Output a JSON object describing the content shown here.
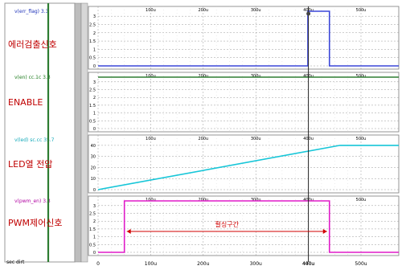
{
  "colors": {
    "green": "#2e7d32",
    "blue": "#3b46d8",
    "cyan": "#17c6d8",
    "magenta": "#e01bc8",
    "red": "#d00000",
    "panel_bg": "#ffffff"
  },
  "time_axis": {
    "unit": "us",
    "labels": [
      "0",
      "100u",
      "200u",
      "300u",
      "400u",
      "500u"
    ]
  },
  "panels": [
    {
      "id": "p1",
      "signal_title": "v(err_flag) 3.3",
      "label": "에러검출신호",
      "y_ticks": [
        "3",
        "2.5",
        "2",
        "1.5",
        "1",
        "0.5",
        "0"
      ]
    },
    {
      "id": "p2",
      "signal_title": "v(en) cc.1c 3.3",
      "label": "ENABLE",
      "y_ticks": [
        "3",
        "2.5",
        "2",
        "1.5",
        "1",
        "0.5",
        "0"
      ]
    },
    {
      "id": "p3",
      "signal_title": "v(led) sc.cc 35.7",
      "label": "LED열 전압",
      "y_ticks": [
        "40",
        "30",
        "20",
        "10",
        "0"
      ]
    },
    {
      "id": "p4",
      "signal_title": "v(pwm_en) 3.3",
      "label": "PWM제어신호",
      "y_ticks": [
        "3",
        "2.5",
        "2",
        "1.5",
        "1",
        "0.5",
        "0"
      ]
    }
  ],
  "annotation": {
    "text": "펄싱구간"
  },
  "bottom_left": "sec dirt",
  "cursor": {
    "label": "440u"
  },
  "chart_data": {
    "type": "line",
    "x_unit": "us",
    "xlim": [
      0,
      500
    ],
    "series": [
      {
        "panel": "p1",
        "points": [
          [
            0,
            0
          ],
          [
            399,
            0
          ],
          [
            399,
            3.3
          ],
          [
            440,
            3.3
          ],
          [
            440,
            0
          ],
          [
            500,
            0
          ]
        ]
      },
      {
        "panel": "p2",
        "points": [
          [
            0,
            3.3
          ],
          [
            500,
            3.3
          ]
        ]
      },
      {
        "panel": "p3",
        "points": [
          [
            0,
            0
          ],
          [
            460,
            40
          ],
          [
            500,
            40
          ]
        ]
      },
      {
        "panel": "p4",
        "points": [
          [
            0,
            0
          ],
          [
            50,
            0
          ],
          [
            50,
            3.3
          ],
          [
            440,
            3.3
          ],
          [
            440,
            0
          ],
          [
            500,
            0
          ]
        ]
      }
    ],
    "ylim": {
      "p1": [
        0,
        3.3
      ],
      "p2": [
        0,
        3.3
      ],
      "p3": [
        0,
        45
      ],
      "p4": [
        0,
        3.3
      ]
    }
  }
}
